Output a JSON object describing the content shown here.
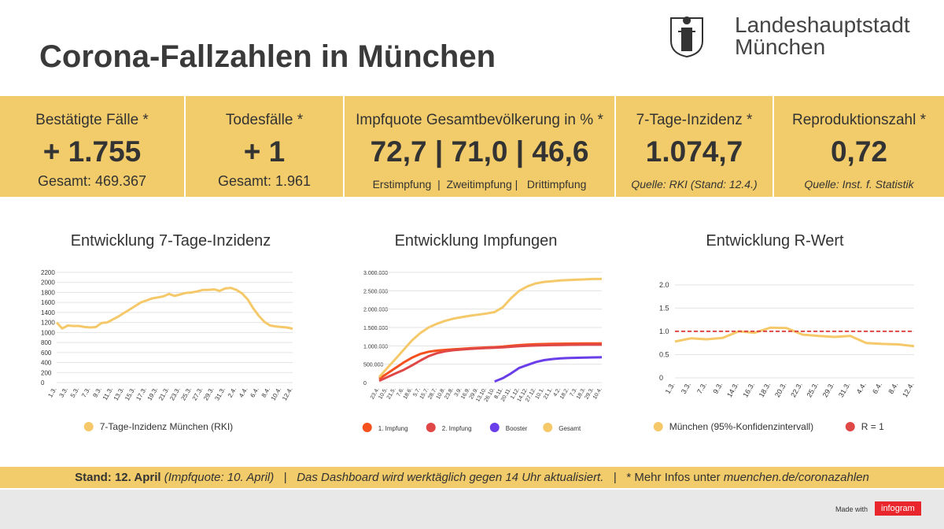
{
  "header": {
    "title": "Corona-Fallzahlen in München",
    "logo_line1": "Landeshauptstadt",
    "logo_line2": "München"
  },
  "stats": [
    {
      "label": "Bestätigte Fälle *",
      "value": "+ 1.755",
      "sub": "Gesamt: 469.367"
    },
    {
      "label": "Todesfälle *",
      "value": "+ 1",
      "sub": "Gesamt: 1.961"
    },
    {
      "label": "Impfquote Gesamtbevölkerung in % *",
      "value": "72,7 | 71,0 | 46,6",
      "sub": "Erstimpfung  |  Zweitimpfung |   Drittimpfung"
    },
    {
      "label": "7-Tage-Inzidenz *",
      "value": "1.074,7",
      "sub": "Quelle: RKI (Stand: 12.4.)"
    },
    {
      "label": "Reproduktionszahl *",
      "value": "0,72",
      "sub": "Quelle: Inst. f. Statistik"
    }
  ],
  "chart_data": [
    {
      "type": "line",
      "title": "Entwicklung 7-Tage-Inzidenz",
      "categories": [
        "1.3.",
        null,
        "3.3.",
        null,
        "5.3.",
        null,
        "7.3.",
        null,
        "9.3.",
        null,
        "11.3.",
        null,
        "13.3.",
        null,
        "15.3.",
        null,
        "17.3.",
        null,
        "19.3.",
        null,
        "21.3.",
        null,
        "23.3.",
        null,
        "25.3.",
        null,
        "27.3.",
        null,
        "29.3.",
        null,
        "31.3.",
        null,
        "2.4.",
        null,
        "4.4.",
        null,
        "6.4.",
        null,
        "8.4.",
        null,
        "10.4.",
        null,
        "12.4."
      ],
      "series": [
        {
          "name": "7-Tage-Inzidenz München (RKI)",
          "color": "#f5c96a",
          "values": [
            1200,
            1080,
            1140,
            1130,
            1130,
            1110,
            1100,
            1110,
            1190,
            1200,
            1260,
            1320,
            1390,
            1460,
            1530,
            1600,
            1640,
            1680,
            1700,
            1720,
            1770,
            1730,
            1760,
            1790,
            1800,
            1820,
            1850,
            1850,
            1860,
            1830,
            1880,
            1890,
            1850,
            1780,
            1660,
            1480,
            1330,
            1210,
            1140,
            1120,
            1110,
            1100,
            1075
          ]
        }
      ],
      "ylim": [
        0,
        2200
      ],
      "yticks": [
        0,
        200,
        400,
        600,
        800,
        1000,
        1200,
        1400,
        1600,
        1800,
        2000,
        2200
      ],
      "grid": true
    },
    {
      "type": "line",
      "title": "Entwicklung Impfungen",
      "categories": [
        "23.4.",
        "10.5.",
        "21.5.",
        "7.6.",
        "18.6.",
        "5.7.",
        "15.7.",
        "28.7.",
        "10.8.",
        "23.8.",
        "3.9.",
        "16.9.",
        "29.9.",
        "13.10.",
        "26.10.",
        "8.11.",
        "20.11.",
        "1.12.",
        "14.12.",
        "27.12.",
        "10.1.",
        "21.1.",
        "4.2.",
        "18.2.",
        "7.3.",
        "18.3.",
        "29.3.",
        "10.4."
      ],
      "series": [
        {
          "name": "1. Impfung",
          "color": "#f4511e",
          "values": [
            100000,
            250000,
            400000,
            550000,
            680000,
            780000,
            840000,
            870000,
            890000,
            905000,
            920000,
            935000,
            945000,
            955000,
            965000,
            980000,
            1000000,
            1020000,
            1035000,
            1045000,
            1050000,
            1055000,
            1058000,
            1060000,
            1062000,
            1064000,
            1065000,
            1066000
          ]
        },
        {
          "name": "2. Impfung",
          "color": "#e04848",
          "values": [
            50000,
            150000,
            250000,
            350000,
            470000,
            600000,
            720000,
            800000,
            850000,
            880000,
            900000,
            915000,
            930000,
            940000,
            950000,
            960000,
            975000,
            990000,
            1000000,
            1010000,
            1015000,
            1020000,
            1025000,
            1028000,
            1030000,
            1032000,
            1033000,
            1034000
          ]
        },
        {
          "name": "Booster",
          "color": "#6a3ee8",
          "values": [
            null,
            null,
            null,
            null,
            null,
            null,
            null,
            null,
            null,
            null,
            null,
            null,
            null,
            null,
            30000,
            120000,
            250000,
            400000,
            480000,
            560000,
            610000,
            640000,
            660000,
            670000,
            675000,
            680000,
            685000,
            690000
          ]
        },
        {
          "name": "Gesamt",
          "color": "#f5c96a",
          "values": [
            150000,
            400000,
            650000,
            900000,
            1150000,
            1350000,
            1500000,
            1600000,
            1680000,
            1740000,
            1780000,
            1820000,
            1850000,
            1880000,
            1920000,
            2050000,
            2300000,
            2500000,
            2620000,
            2700000,
            2740000,
            2760000,
            2780000,
            2790000,
            2800000,
            2810000,
            2820000,
            2820000
          ]
        }
      ],
      "ylim": [
        0,
        3000000
      ],
      "yticks": [
        0,
        {
          "value": 500000,
          "label": "500.000"
        },
        {
          "value": 1000000,
          "label": "1.000.000"
        },
        {
          "value": 1500000,
          "label": "1.500.000"
        },
        {
          "value": 2000000,
          "label": "2.000.000"
        },
        {
          "value": 2500000,
          "label": "2.500.000"
        },
        {
          "value": 3000000,
          "label": "3.000.000"
        }
      ],
      "grid": true
    },
    {
      "type": "line",
      "title": "Entwicklung R-Wert",
      "categories": [
        "1.3.",
        "3.3.",
        "7.3.",
        "9.3.",
        "14.3.",
        "16.3.",
        "18.3.",
        "20.3.",
        "22.3.",
        "25.3.",
        "29.3.",
        "31.3.",
        "4.4.",
        "6.4.",
        "8.4.",
        "12.4."
      ],
      "series": [
        {
          "name": "München (95%-Konfidenzintervall)",
          "color": "#f5c96a",
          "values": [
            0.78,
            0.85,
            0.83,
            0.86,
            1.0,
            0.97,
            1.08,
            1.07,
            0.93,
            0.9,
            0.88,
            0.9,
            0.75,
            0.73,
            0.72,
            0.68
          ]
        },
        {
          "name": "R = 1",
          "color": "#e04848",
          "dash": true,
          "values": [
            1,
            1,
            1,
            1,
            1,
            1,
            1,
            1,
            1,
            1,
            1,
            1,
            1,
            1,
            1,
            1
          ]
        }
      ],
      "ylim": [
        0,
        2.2
      ],
      "yticks": [
        0,
        {
          "value": 0.5,
          "label": "0.5"
        },
        {
          "value": 1,
          "label": "1.0"
        },
        {
          "value": 1.5,
          "label": "1.5"
        },
        {
          "value": 2,
          "label": "2.0"
        }
      ],
      "grid": true
    }
  ],
  "footer": {
    "items": [
      "Stand: 12. April",
      "(Impfquote: 10. April)",
      "|",
      "Das Dashboard wird werktäglich gegen 14 Uhr aktualisiert.",
      "|",
      "* Mehr Infos unter",
      "muenchen.de/coronazahlen"
    ],
    "made_with": "Made with",
    "brand": "infogram"
  }
}
